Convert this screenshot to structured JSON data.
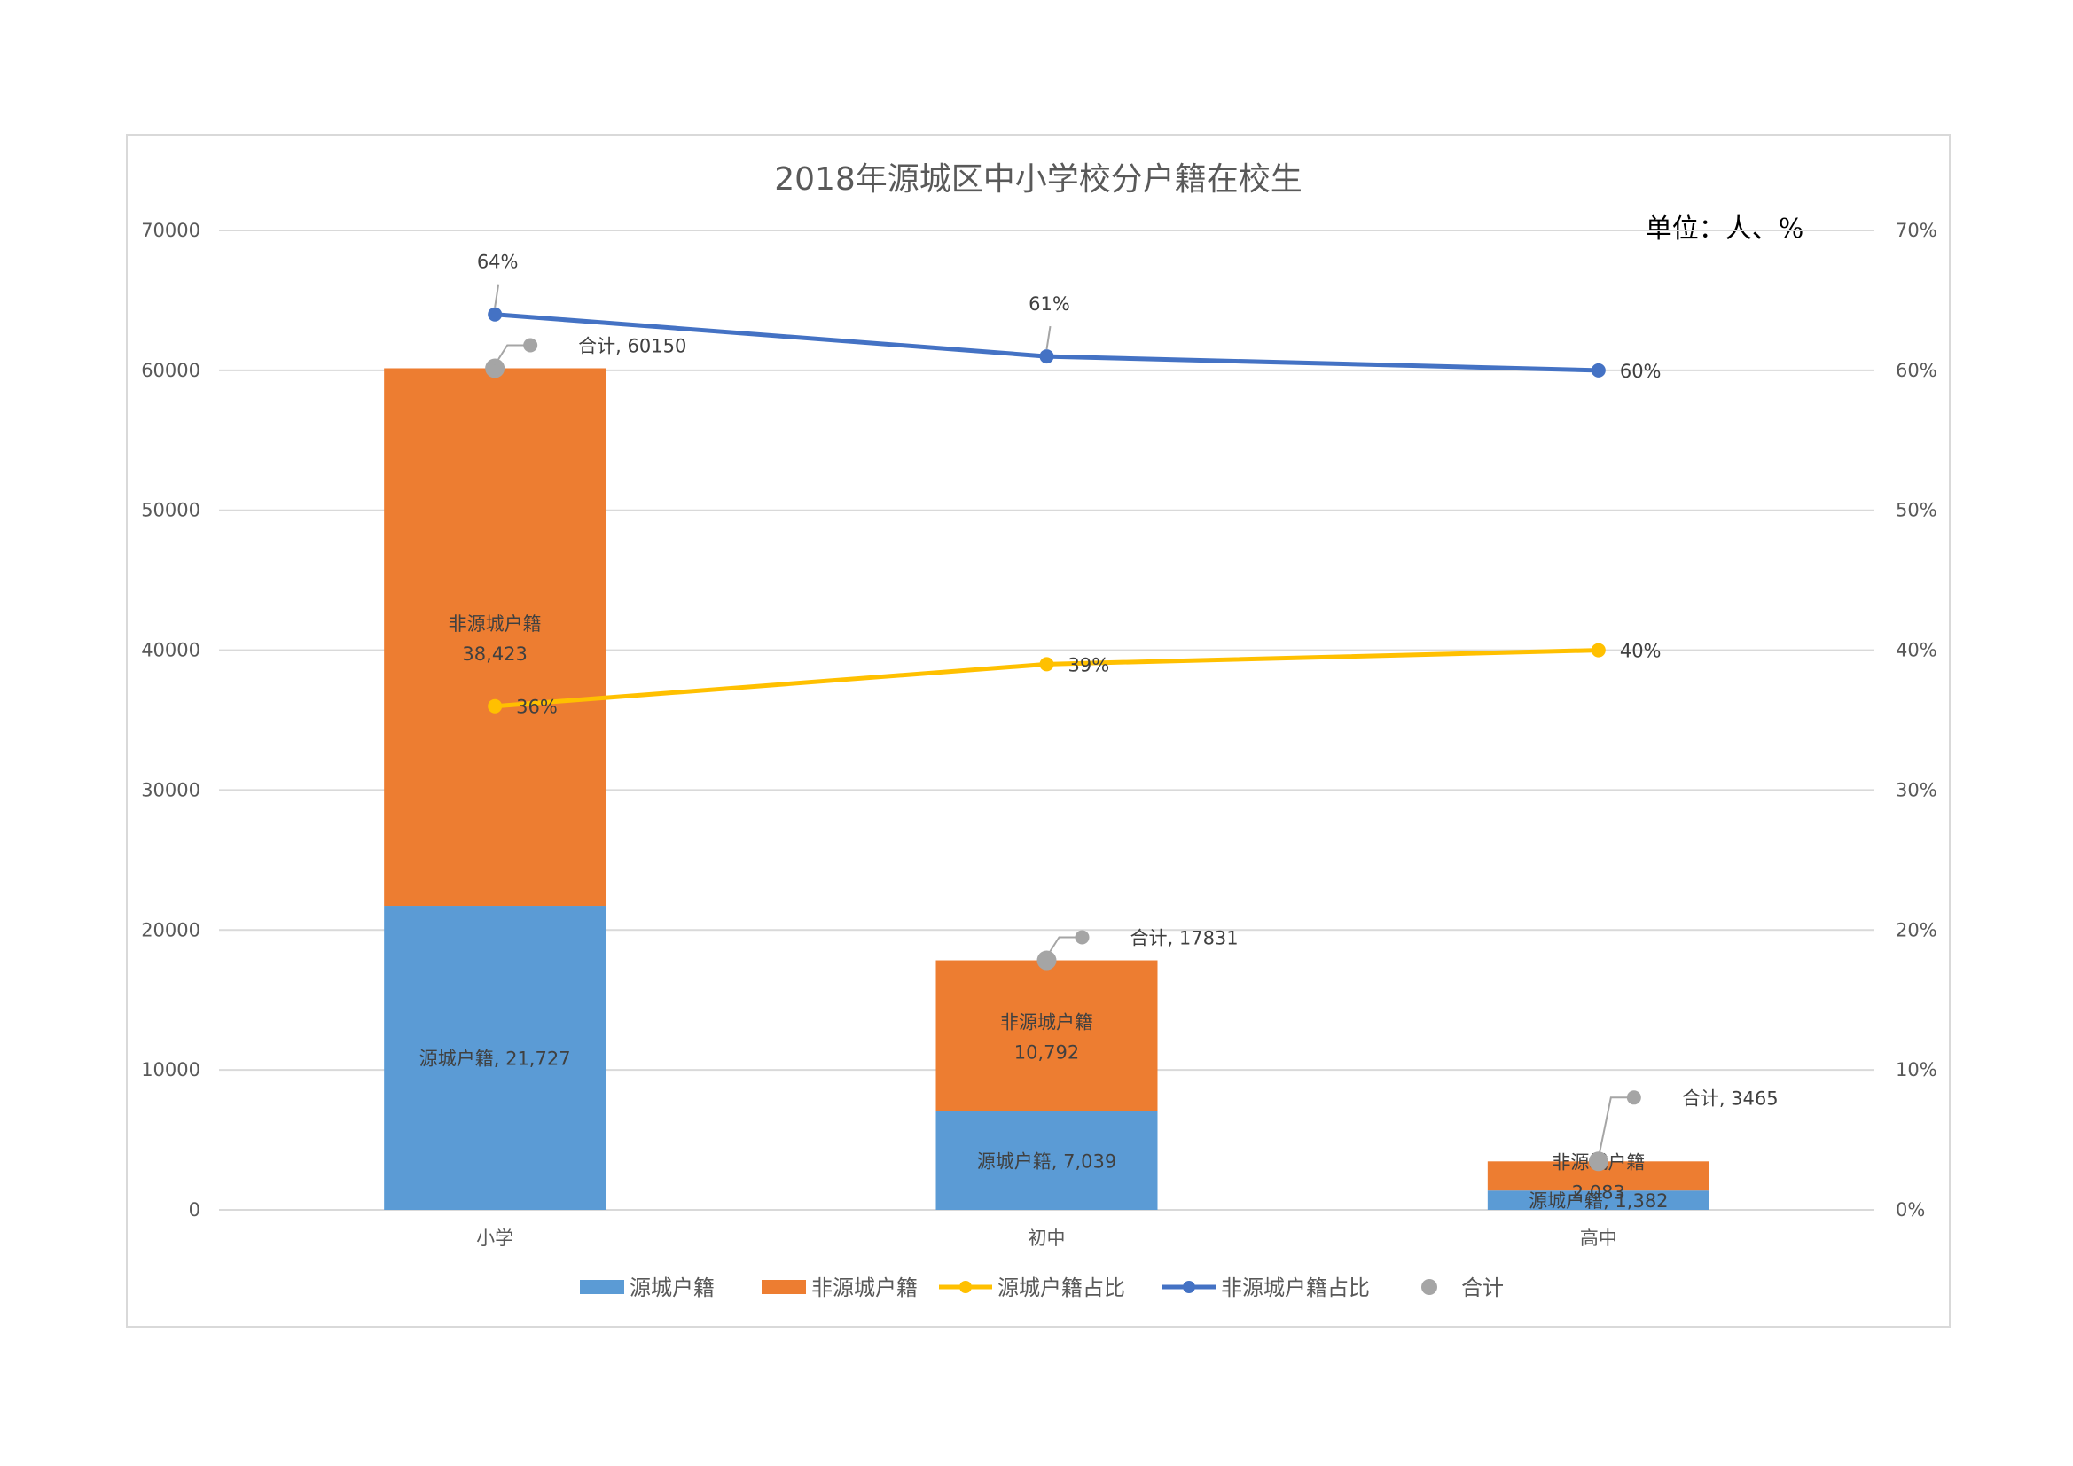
{
  "chart_data": {
    "type": "bar",
    "stacked": true,
    "title": "2018年源城区中小学校分户籍在校生",
    "unit_note": "单位：人、%",
    "categories": [
      "小学",
      "初中",
      "高中"
    ],
    "series": [
      {
        "name": "源城户籍",
        "kind": "bar",
        "axis": "left",
        "color": "#5b9bd5",
        "values": [
          21727,
          7039,
          1382
        ],
        "labels": [
          "源城户籍, 21,727",
          "源城户籍, 7,039",
          "源城户籍, 1,382"
        ]
      },
      {
        "name": "非源城户籍",
        "kind": "bar",
        "axis": "left",
        "color": "#ed7d31",
        "values": [
          38423,
          10792,
          2083
        ],
        "labels": [
          "非源城户籍|38,423",
          "非源城户籍|10,792",
          "非源城户籍|2,083"
        ]
      },
      {
        "name": "源城户籍占比",
        "kind": "line",
        "axis": "right",
        "color": "#ffc000",
        "values": [
          36,
          39,
          40
        ],
        "labels": [
          "36%",
          "39%",
          "40%"
        ]
      },
      {
        "name": "非源城户籍占比",
        "kind": "line",
        "axis": "right",
        "color": "#4472c4",
        "values": [
          64,
          61,
          60
        ],
        "labels": [
          "64%",
          "61%",
          "60%"
        ]
      },
      {
        "name": "合计",
        "kind": "scatter",
        "axis": "left",
        "color": "#a5a5a5",
        "values": [
          60150,
          17831,
          3465
        ],
        "labels": [
          "合计, 60150",
          "合计, 17831",
          "合计, 3465"
        ]
      }
    ],
    "y_left": {
      "ylim": [
        0,
        70000
      ],
      "ticks": [
        "0",
        "10000",
        "20000",
        "30000",
        "40000",
        "50000",
        "60000",
        "70000"
      ]
    },
    "y_right": {
      "ylim": [
        0,
        70
      ],
      "ticks": [
        "0%",
        "10%",
        "20%",
        "30%",
        "40%",
        "50%",
        "60%",
        "70%"
      ]
    },
    "grid": true,
    "legend": "bottom"
  }
}
